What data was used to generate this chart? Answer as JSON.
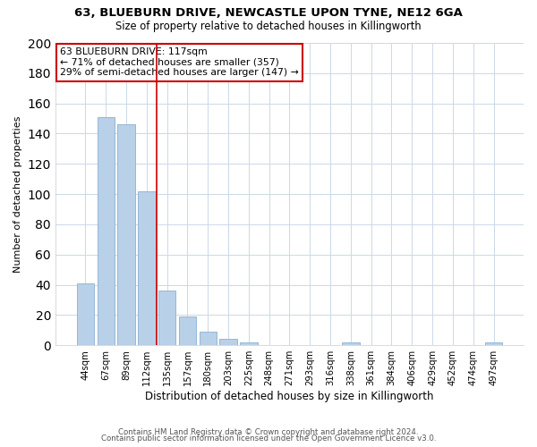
{
  "title": "63, BLUEBURN DRIVE, NEWCASTLE UPON TYNE, NE12 6GA",
  "subtitle": "Size of property relative to detached houses in Killingworth",
  "xlabel": "Distribution of detached houses by size in Killingworth",
  "ylabel": "Number of detached properties",
  "bar_labels": [
    "44sqm",
    "67sqm",
    "89sqm",
    "112sqm",
    "135sqm",
    "157sqm",
    "180sqm",
    "203sqm",
    "225sqm",
    "248sqm",
    "271sqm",
    "293sqm",
    "316sqm",
    "338sqm",
    "361sqm",
    "384sqm",
    "406sqm",
    "429sqm",
    "452sqm",
    "474sqm",
    "497sqm"
  ],
  "bar_values": [
    41,
    151,
    146,
    102,
    36,
    19,
    9,
    4,
    2,
    0,
    0,
    0,
    0,
    2,
    0,
    0,
    0,
    0,
    0,
    0,
    2
  ],
  "bar_color": "#b8d0e8",
  "bar_edge_color": "#8ab0d0",
  "vline_color": "#cc0000",
  "vline_x_index": 3,
  "annotation_line1": "63 BLUEBURN DRIVE: 117sqm",
  "annotation_line2": "← 71% of detached houses are smaller (357)",
  "annotation_line3": "29% of semi-detached houses are larger (147) →",
  "annotation_box_edgecolor": "#cc0000",
  "annotation_box_facecolor": "#ffffff",
  "ylim": [
    0,
    200
  ],
  "yticks": [
    0,
    20,
    40,
    60,
    80,
    100,
    120,
    140,
    160,
    180,
    200
  ],
  "footer_line1": "Contains HM Land Registry data © Crown copyright and database right 2024.",
  "footer_line2": "Contains public sector information licensed under the Open Government Licence v3.0.",
  "background_color": "#ffffff",
  "grid_color": "#ccd8e8"
}
